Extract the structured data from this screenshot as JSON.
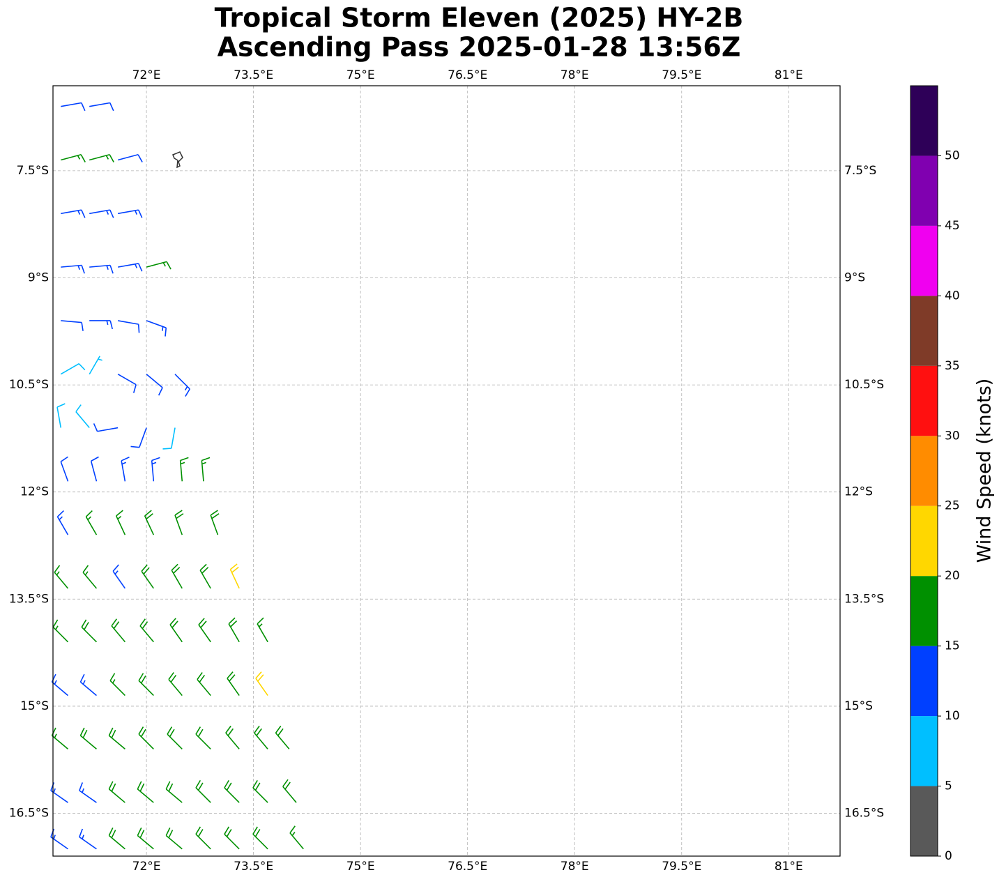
{
  "title_lines": [
    "Tropical Storm Eleven (2025) HY-2B",
    "Ascending Pass 2025-01-28 13:56Z"
  ],
  "map": {
    "xlim": [
      70.69,
      81.72
    ],
    "ylim": [
      -17.1,
      -6.31
    ],
    "xticks": [
      {
        "value": 72,
        "label": "72°E"
      },
      {
        "value": 73.5,
        "label": "73.5°E"
      },
      {
        "value": 75,
        "label": "75°E"
      },
      {
        "value": 76.5,
        "label": "76.5°E"
      },
      {
        "value": 78,
        "label": "78°E"
      },
      {
        "value": 79.5,
        "label": "79.5°E"
      },
      {
        "value": 81,
        "label": "81°E"
      }
    ],
    "yticks": [
      {
        "value": -7.5,
        "label": "7.5°S"
      },
      {
        "value": -9,
        "label": "9°S"
      },
      {
        "value": -10.5,
        "label": "10.5°S"
      },
      {
        "value": -12,
        "label": "12°S"
      },
      {
        "value": -13.5,
        "label": "13.5°S"
      },
      {
        "value": -15,
        "label": "15°S"
      },
      {
        "value": -16.5,
        "label": "16.5°S"
      }
    ],
    "grid": true
  },
  "colorbar": {
    "label": "Wind Speed (knots)",
    "ylim": [
      0,
      55
    ],
    "bounds": [
      0,
      5,
      10,
      15,
      20,
      25,
      30,
      35,
      40,
      45,
      50,
      55
    ],
    "colors": [
      "#595959",
      "#00bfff",
      "#0040ff",
      "#009000",
      "#ffd700",
      "#ff8c00",
      "#ff1010",
      "#7f3b28",
      "#f000f0",
      "#8000b0",
      "#2e0058"
    ],
    "yticks": [
      0,
      5,
      10,
      15,
      20,
      25,
      30,
      35,
      40,
      45,
      50
    ]
  },
  "wind_barbs": {
    "lon": [
      70.8,
      71.2,
      70.8,
      71.2,
      71.6,
      70.8,
      71.2,
      71.6,
      70.8,
      71.2,
      71.6,
      72.0,
      70.8,
      71.2,
      71.6,
      72.0,
      70.8,
      71.2,
      71.6,
      72.0,
      72.4,
      70.8,
      71.2,
      71.6,
      72.0,
      72.4,
      70.9,
      71.3,
      71.7,
      72.1,
      72.5,
      72.8,
      70.9,
      71.3,
      71.7,
      72.1,
      72.5,
      73.0,
      70.9,
      71.3,
      71.7,
      72.1,
      72.5,
      72.9,
      73.3,
      70.9,
      71.3,
      71.7,
      72.1,
      72.5,
      72.9,
      73.3,
      73.7,
      70.9,
      71.3,
      71.7,
      72.1,
      72.5,
      72.9,
      73.3,
      73.7,
      70.9,
      71.3,
      71.7,
      72.1,
      72.5,
      72.9,
      73.3,
      73.7,
      74.0,
      70.9,
      71.3,
      71.7,
      72.1,
      72.5,
      72.9,
      73.3,
      73.7,
      74.1,
      70.9,
      71.3,
      71.7,
      72.1,
      72.5,
      72.9,
      73.3,
      73.7,
      74.2
    ],
    "lat": [
      -6.6,
      -6.6,
      -7.35,
      -7.35,
      -7.35,
      -8.1,
      -8.1,
      -8.1,
      -8.85,
      -8.85,
      -8.85,
      -8.85,
      -9.6,
      -9.6,
      -9.6,
      -9.6,
      -10.35,
      -10.35,
      -10.35,
      -10.35,
      -10.35,
      -11.1,
      -11.1,
      -11.1,
      -11.1,
      -11.1,
      -11.85,
      -11.85,
      -11.85,
      -11.85,
      -11.85,
      -11.85,
      -12.6,
      -12.6,
      -12.6,
      -12.6,
      -12.6,
      -12.6,
      -13.35,
      -13.35,
      -13.35,
      -13.35,
      -13.35,
      -13.35,
      -13.35,
      -14.1,
      -14.1,
      -14.1,
      -14.1,
      -14.1,
      -14.1,
      -14.1,
      -14.1,
      -14.85,
      -14.85,
      -14.85,
      -14.85,
      -14.85,
      -14.85,
      -14.85,
      -14.85,
      -15.6,
      -15.6,
      -15.6,
      -15.6,
      -15.6,
      -15.6,
      -15.6,
      -15.6,
      -15.6,
      -16.35,
      -16.35,
      -16.35,
      -16.35,
      -16.35,
      -16.35,
      -16.35,
      -16.35,
      -16.35,
      -17.0,
      -17.0,
      -17.0,
      -17.0,
      -17.0,
      -17.0,
      -17.0,
      -17.0,
      -17.0
    ],
    "speed": [
      12,
      12,
      17,
      17,
      12,
      14,
      14,
      13,
      13,
      13,
      14,
      17,
      12,
      13,
      12,
      14,
      8,
      7,
      11,
      12,
      13,
      9,
      8,
      11,
      12,
      9,
      12,
      12,
      13,
      14,
      16,
      15,
      13,
      16,
      17,
      18,
      18,
      18,
      17,
      17,
      14,
      18,
      18,
      18,
      21,
      17,
      18,
      18,
      19,
      19,
      18,
      19,
      16,
      13,
      13,
      17,
      18,
      18,
      18,
      19,
      21,
      17,
      18,
      18,
      19,
      19,
      19,
      19,
      19,
      18,
      13,
      14,
      18,
      18,
      18,
      19,
      19,
      19,
      18,
      13,
      13,
      18,
      18,
      18,
      18,
      18,
      18,
      17
    ],
    "direction": [
      80,
      80,
      75,
      75,
      75,
      80,
      80,
      80,
      85,
      85,
      80,
      75,
      95,
      90,
      100,
      110,
      60,
      30,
      120,
      130,
      135,
      350,
      320,
      260,
      200,
      190,
      340,
      345,
      350,
      355,
      355,
      355,
      330,
      330,
      335,
      335,
      340,
      340,
      320,
      320,
      325,
      325,
      330,
      330,
      335,
      315,
      315,
      320,
      320,
      325,
      325,
      330,
      330,
      310,
      310,
      315,
      315,
      320,
      320,
      325,
      325,
      310,
      310,
      310,
      315,
      315,
      315,
      320,
      320,
      320,
      305,
      305,
      310,
      310,
      310,
      315,
      315,
      315,
      320,
      305,
      305,
      310,
      310,
      310,
      315,
      315,
      315,
      320
    ]
  }
}
